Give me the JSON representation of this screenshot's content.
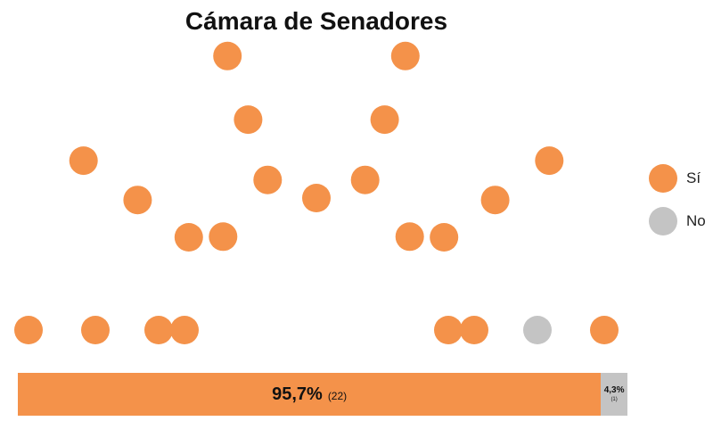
{
  "chart_data": {
    "type": "parliament",
    "title": "Cámara de Senadores",
    "colors": {
      "si": "#F4924A",
      "no": "#C4C4C4"
    },
    "legend": [
      {
        "key": "si",
        "label": "Sí"
      },
      {
        "key": "no",
        "label": "No"
      }
    ],
    "legend_position": "right",
    "series": [
      {
        "key": "si",
        "label": "Sí",
        "seats": 22,
        "percent_label": "95,7%",
        "count_label": "(22)"
      },
      {
        "key": "no",
        "label": "No",
        "seats": 1,
        "percent_label": "4,3%",
        "count_label": "(1)"
      }
    ],
    "total_seats": 23,
    "rows": [
      6,
      6,
      6,
      5
    ]
  }
}
